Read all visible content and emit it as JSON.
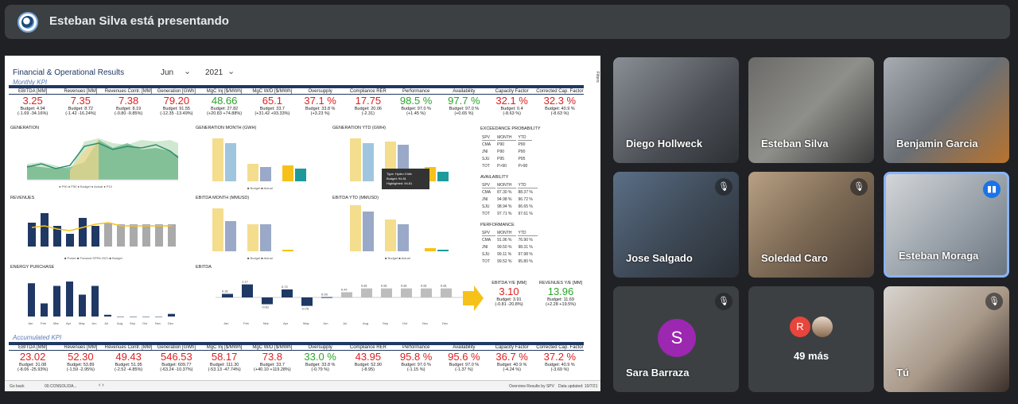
{
  "meet": {
    "presenter_text": "Esteban Silva está presentando"
  },
  "report": {
    "title": "Financial & Operational Results",
    "month": "Jun",
    "year": "2021",
    "monthly_label": "Monthly KPI",
    "accumulated_label": "Accumulated KPI",
    "filters_label": "Filters",
    "kpi_labels": [
      "EBITDA [MM]",
      "Revenues [MM]",
      "Revenues Contr. [MM]",
      "Generation [GWh]",
      "MgC Inj [$/MWh]",
      "MgC W/D [$/MWh]",
      "Oversupply",
      "Compliance RER",
      "Performance",
      "Availability",
      "Capacity Factor",
      "Corrected Cap. Factor"
    ],
    "monthly": [
      {
        "v": "3.25",
        "b": "Budget: 4.94",
        "d": "(-1.69 -34.16%)",
        "c": "red"
      },
      {
        "v": "7.35",
        "b": "Budget: 8.72",
        "d": "(-1.42 -16.24%)",
        "c": "red"
      },
      {
        "v": "7.38",
        "b": "Budget: 8.19",
        "c": "red",
        "d": "(-0.80 -9.85%)"
      },
      {
        "v": "79.20",
        "b": "Budget: 91.55",
        "d": "(-12.35 -13.49%)",
        "c": "red"
      },
      {
        "v": "48.66",
        "b": "Budget: 27.82",
        "d": "(+20.83 +74.88%)",
        "c": "green"
      },
      {
        "v": "65.1",
        "b": "Budget: 33.7",
        "d": "(+31.42 +93.33%)",
        "c": "red"
      },
      {
        "v": "37.1 %",
        "b": "Budget: 33.8 %",
        "d": "(+3.23 %)",
        "c": "red"
      },
      {
        "v": "17.75",
        "b": "Budget: 20.06",
        "d": "(-2.31)",
        "c": "red"
      },
      {
        "v": "98.5 %",
        "b": "Budget: 97.0 %",
        "d": "(+1.45 %)",
        "c": "green"
      },
      {
        "v": "97.7 %",
        "b": "Budget: 97.0 %",
        "d": "(+0.65 %)",
        "c": "green"
      },
      {
        "v": "32.1 %",
        "b": "Budget: 0.4",
        "d": "(-8.63 %)",
        "c": "red"
      },
      {
        "v": "32.3 %",
        "b": "Budget: 40.9 %",
        "d": "(-8.63 %)",
        "c": "red"
      }
    ],
    "accumulated": [
      {
        "v": "23.02",
        "b": "Budget: 31.08",
        "d": "(-8.06 -25.93%)",
        "c": "red"
      },
      {
        "v": "52.30",
        "b": "Budget: 53.89",
        "d": "(-1.59 -2.95%)",
        "c": "red"
      },
      {
        "v": "49.43",
        "b": "Budget: 51.95",
        "d": "(-2.52 -4.85%)",
        "c": "red"
      },
      {
        "v": "546.53",
        "b": "Budget: 609.77",
        "d": "(-63.24 -10.37%)",
        "c": "red"
      },
      {
        "v": "58.17",
        "b": "Budget: 111.30",
        "d": "(-53.13 -47.74%)",
        "c": "red"
      },
      {
        "v": "73.8",
        "b": "Budget: 33.7",
        "d": "(+40.10 +119.28%)",
        "c": "red"
      },
      {
        "v": "33.0 %",
        "b": "Budget: 33.8 %",
        "d": "(-0.79 %)",
        "c": "green"
      },
      {
        "v": "43.95",
        "b": "Budget: 52.90",
        "d": "(-8.95)",
        "c": "red"
      },
      {
        "v": "95.8 %",
        "b": "Budget: 97.0 %",
        "d": "(-1.15 %)",
        "c": "red"
      },
      {
        "v": "95.6 %",
        "b": "Budget: 97.0 %",
        "d": "(-1.37 %)",
        "c": "red"
      },
      {
        "v": "36.7 %",
        "b": "Budget: 40.9 %",
        "d": "(-4.24 %)",
        "c": "red"
      },
      {
        "v": "37.2 %",
        "b": "Budget: 40.9 %",
        "d": "(-3.69 %)",
        "c": "red"
      }
    ],
    "sections": {
      "generation": "GENERATION",
      "gen_month": "GENERATION MONTH (GWH)",
      "gen_ytd": "GENERATION YTD (GWH)",
      "revenues": "REVENUES",
      "ebitda_month": "EBITDA MONTH (MMUSD)",
      "ebitda_ytd": "EBITDA YTD (MMUSD)",
      "energy": "ENERGY PURCHASE",
      "ebitda": "EBITDA",
      "exceed": "EXCEEDANCE PROBABILITY",
      "avail": "AVAILABILITY",
      "perf": "PERFORMANCE"
    },
    "months": [
      "Jan",
      "Feb",
      "Mar",
      "Apr",
      "May",
      "Jun",
      "Jul",
      "Aug",
      "Sep",
      "Oct",
      "Nov",
      "Dec"
    ],
    "ebitda_ye_label": "EBITDA Y/E [MM]",
    "ebitda_ye_value": "3.10",
    "ebitda_ye_budget": "Budget: 3.91",
    "ebitda_ye_delta": "(-0.81 -20.8%)",
    "rev_ye_label": "REVENUES Y/E [MM]",
    "rev_ye_value": "13.96",
    "rev_ye_budget": "Budget: 11.69",
    "rev_ye_delta": "(+2.28 +19.5%)",
    "tooltip": {
      "type": "Type: Hydro Chile",
      "budget": "Budget: 94.81",
      "highlighted": "Highlighted: 94.81"
    },
    "status_left": "Go back",
    "status_tab": "00.CONSOLIDA...",
    "status_right": "Overview Results by SPV",
    "status_date": "Data updated: 10/7/21"
  },
  "tiles": [
    {
      "name": "Diego Hollweck",
      "muted": false
    },
    {
      "name": "Esteban Silva",
      "muted": false
    },
    {
      "name": "Benjamin Garcia",
      "muted": false
    },
    {
      "name": "Jose Salgado",
      "muted": true
    },
    {
      "name": "Soledad Caro",
      "muted": true
    },
    {
      "name": "Esteban Moraga",
      "muted": false
    },
    {
      "name": "Sara Barraza",
      "muted": true,
      "initial": "S"
    },
    {
      "name": "49 más",
      "initial": "R"
    },
    {
      "name": "Tú",
      "muted": true
    }
  ],
  "chart_data": [
    {
      "type": "bar",
      "title": "EBITDA",
      "categories": [
        "Jan",
        "Feb",
        "Mar",
        "Apr",
        "May",
        "Jun",
        "Jul",
        "Aug",
        "Sep",
        "Oct",
        "Nov",
        "Dec"
      ],
      "series": [
        {
          "name": "Actual",
          "values": [
            0.32,
            1.17,
            -0.61,
            0.72,
            -0.76,
            0.03,
            0.47,
            0.81,
            0.81,
            0.81,
            0.81,
            0.81
          ]
        }
      ]
    },
    {
      "type": "bar",
      "title": "ENERGY PURCHASE",
      "categories": [
        "Jan",
        "Feb",
        "Mar",
        "Apr",
        "May",
        "Jun",
        "Jul",
        "Aug",
        "Sep",
        "Oct",
        "Nov",
        "Dec"
      ],
      "series": [
        {
          "name": "Actual",
          "values": [
            3.8,
            1.5,
            3.5,
            4.0,
            2.5,
            3.5,
            0.2,
            0,
            0,
            0,
            0,
            0.3
          ]
        }
      ]
    }
  ]
}
